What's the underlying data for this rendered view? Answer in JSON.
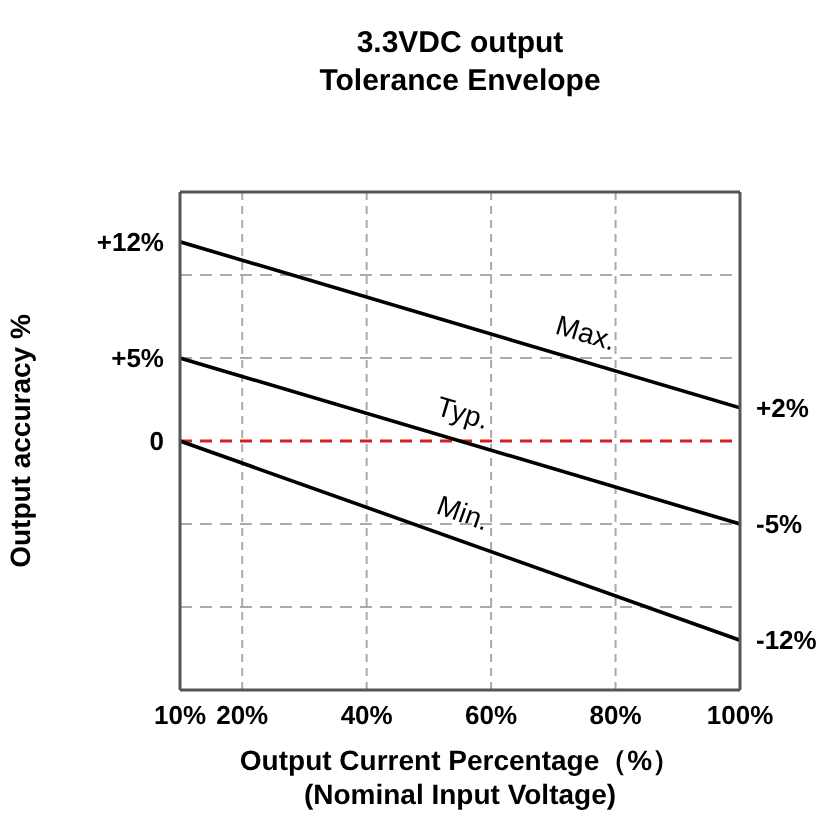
{
  "chart_data": {
    "type": "line",
    "title": "3.3VDC output Tolerance Envelope",
    "xlabel": "Output Current Percentage（%） (Nominal Input Voltage)",
    "ylabel": "Output accuracy %",
    "x": [
      10,
      100
    ],
    "series": [
      {
        "name": "Max.",
        "color": "#000000",
        "values": [
          12,
          2
        ]
      },
      {
        "name": "Typ.",
        "color": "#000000",
        "values": [
          5,
          -5
        ]
      },
      {
        "name": "Min.",
        "color": "#000000",
        "values": [
          0,
          -12
        ]
      }
    ],
    "xlim": [
      10,
      100
    ],
    "xticks": [
      {
        "value": 10,
        "label": "10%"
      },
      {
        "value": 20,
        "label": "20%"
      },
      {
        "value": 40,
        "label": "40%"
      },
      {
        "value": 60,
        "label": "60%"
      },
      {
        "value": 80,
        "label": "80%"
      },
      {
        "value": 100,
        "label": "100%"
      }
    ],
    "ylim": [
      -15,
      15
    ],
    "yticks": [
      {
        "value": 12,
        "label": "+12%"
      },
      {
        "value": 5,
        "label": "+5%"
      },
      0
    ],
    "y2lim": [
      -15,
      15
    ],
    "y2ticks": [
      {
        "value": 2,
        "label": "+2%"
      },
      {
        "value": -5,
        "label": "-5%"
      },
      {
        "value": -12,
        "label": "-12%"
      }
    ],
    "ref_lines": [
      {
        "axis": "y",
        "value": 0,
        "color": "#d62020",
        "line_style": "dashed"
      },
      {
        "axis": "y",
        "value": 10,
        "color": "#aaaaaa",
        "line_style": "dashed"
      },
      {
        "axis": "y",
        "value": 5,
        "color": "#aaaaaa",
        "line_style": "dashed"
      },
      {
        "axis": "y",
        "value": -5,
        "color": "#aaaaaa",
        "line_style": "dashed"
      },
      {
        "axis": "y",
        "value": -10,
        "color": "#aaaaaa",
        "line_style": "dashed"
      }
    ],
    "grid": "x",
    "marker": "none",
    "line_style": "solid"
  }
}
